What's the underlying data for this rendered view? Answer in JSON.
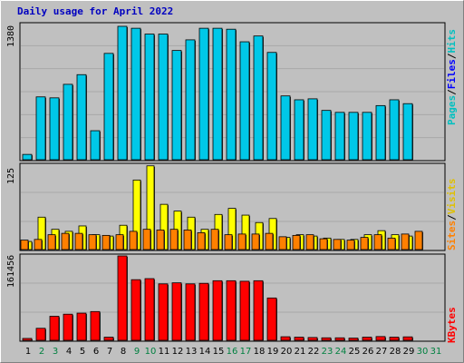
{
  "chart_data": {
    "title": "Daily usage for April 2022",
    "type": "bar",
    "x": [
      "1",
      "2",
      "3",
      "4",
      "5",
      "6",
      "7",
      "8",
      "9",
      "10",
      "11",
      "12",
      "13",
      "14",
      "15",
      "16",
      "17",
      "18",
      "19",
      "20",
      "21",
      "22",
      "23",
      "24",
      "25",
      "26",
      "27",
      "28",
      "29",
      "30",
      "31"
    ],
    "weekend_days": [
      "2",
      "3",
      "9",
      "10",
      "16",
      "17",
      "23",
      "24",
      "30",
      "31"
    ],
    "colors": {
      "hits": "#00c8e8",
      "files": "#0000ff",
      "pages": "#00c0c0",
      "visits": "#ffff00",
      "sites": "#ff8000",
      "kbytes": "#ff0000",
      "weekday_label": "#000000",
      "weekend_label": "#008040",
      "panel_bg": "#c0c0c0",
      "frame_bg": "#c0c0c0"
    },
    "panels": [
      {
        "name": "hits-files-pages",
        "max_label": "1380",
        "legend": [
          {
            "text": "Pages",
            "color": "#00c0c0"
          },
          {
            "text": "Files",
            "color": "#0000ff"
          },
          {
            "text": "Hits",
            "color": "#00c0c0"
          }
        ],
        "ylim": [
          0,
          1380
        ],
        "series": [
          {
            "name": "Hits",
            "values": [
              55,
              650,
              640,
              780,
              880,
              300,
              1100,
              1380,
              1360,
              1300,
              1300,
              1130,
              1240,
              1360,
              1360,
              1350,
              1220,
              1280,
              1110,
              660,
              620,
              630,
              510,
              490,
              490,
              490,
              560,
              620,
              580,
              0,
              0
            ]
          }
        ]
      },
      {
        "name": "visits-sites",
        "max_label": "125",
        "legend": [
          {
            "text": "Sites",
            "color": "#ff8000"
          },
          {
            "text": "Visits",
            "color": "#ffff00"
          }
        ],
        "ylim": [
          0,
          125
        ],
        "series": [
          {
            "name": "Visits",
            "values": [
              12,
              48,
              30,
              27,
              35,
              22,
              20,
              36,
              103,
              124,
              67,
              57,
              48,
              30,
              52,
              61,
              51,
              40,
              46,
              18,
              22,
              20,
              17,
              15,
              15,
              22,
              28,
              22,
              20,
              0,
              0
            ]
          },
          {
            "name": "Sites",
            "values": [
              14,
              15,
              22,
              24,
              24,
              22,
              21,
              22,
              27,
              30,
              29,
              30,
              29,
              25,
              30,
              22,
              23,
              23,
              24,
              19,
              21,
              22,
              16,
              15,
              14,
              18,
              22,
              17,
              23,
              27,
              0
            ]
          }
        ]
      },
      {
        "name": "kbytes",
        "max_label": "161456",
        "legend": [
          {
            "text": "KBytes",
            "color": "#ff0000"
          }
        ],
        "ylim": [
          0,
          161456
        ],
        "series": [
          {
            "name": "KBytes",
            "values": [
              3600,
              23000,
              46000,
              50000,
              52000,
              55000,
              6000,
              161456,
              116000,
              118000,
              108000,
              110000,
              108000,
              109000,
              114000,
              114000,
              113000,
              114000,
              81000,
              6800,
              6000,
              5400,
              4800,
              4800,
              4200,
              6000,
              7200,
              6000,
              6600,
              0,
              0
            ]
          }
        ]
      }
    ]
  }
}
